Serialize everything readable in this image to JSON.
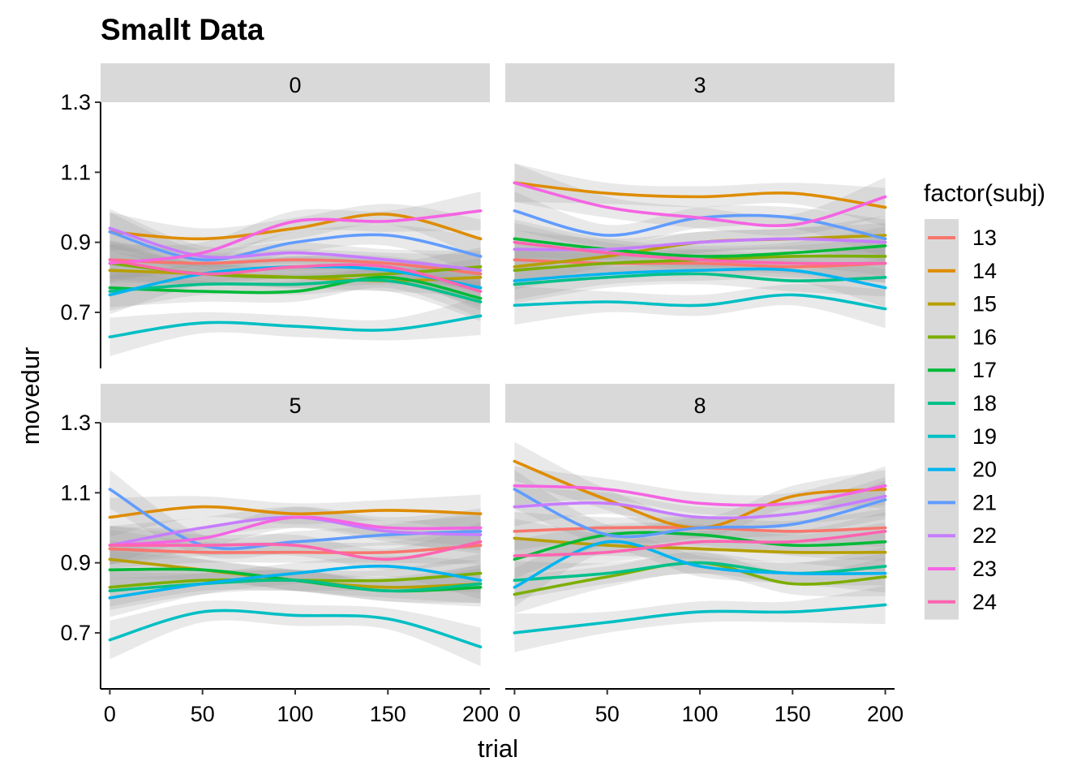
{
  "chart_data": {
    "type": "line",
    "title": "Smallt Data",
    "xlabel": "trial",
    "ylabel": "movedur",
    "x_ticks": [
      0,
      50,
      100,
      150,
      200
    ],
    "y_ticks": [
      0.7,
      0.9,
      1.1,
      1.3
    ],
    "y_tick_labels": [
      "0.7",
      "0.9",
      "1.1",
      "1.3"
    ],
    "xlim": [
      -5,
      205
    ],
    "ylim": [
      0.54,
      1.3
    ],
    "legend": {
      "title": "factor(subj)",
      "placement": "right"
    },
    "series_colors": {
      "13": "#F8766D",
      "14": "#DE8C00",
      "15": "#B79F00",
      "16": "#7CAE00",
      "17": "#00BA38",
      "18": "#00C08B",
      "19": "#00BFC4",
      "20": "#00B4F0",
      "21": "#619CFF",
      "22": "#C77CFF",
      "23": "#F564E3",
      "24": "#FF64B0"
    },
    "subjects": [
      "13",
      "14",
      "15",
      "16",
      "17",
      "18",
      "19",
      "20",
      "21",
      "22",
      "23",
      "24"
    ],
    "x": [
      0,
      50,
      100,
      150,
      200
    ],
    "panels": [
      {
        "label": "0",
        "series": [
          {
            "name": "13",
            "values": [
              0.85,
              0.84,
              0.85,
              0.84,
              0.81
            ]
          },
          {
            "name": "14",
            "values": [
              0.93,
              0.91,
              0.94,
              0.98,
              0.91
            ]
          },
          {
            "name": "15",
            "values": [
              0.82,
              0.81,
              0.8,
              0.79,
              0.8
            ]
          },
          {
            "name": "16",
            "values": [
              0.84,
              0.81,
              0.8,
              0.81,
              0.83
            ]
          },
          {
            "name": "17",
            "values": [
              0.77,
              0.76,
              0.76,
              0.8,
              0.74
            ]
          },
          {
            "name": "18",
            "values": [
              0.76,
              0.78,
              0.78,
              0.79,
              0.73
            ]
          },
          {
            "name": "19",
            "values": [
              0.63,
              0.67,
              0.66,
              0.65,
              0.69
            ]
          },
          {
            "name": "20",
            "values": [
              0.75,
              0.81,
              0.83,
              0.82,
              0.77
            ]
          },
          {
            "name": "21",
            "values": [
              0.93,
              0.85,
              0.9,
              0.92,
              0.86
            ]
          },
          {
            "name": "22",
            "values": [
              0.94,
              0.86,
              0.87,
              0.85,
              0.82
            ]
          },
          {
            "name": "23",
            "values": [
              0.84,
              0.87,
              0.96,
              0.96,
              0.99
            ]
          },
          {
            "name": "24",
            "values": [
              0.85,
              0.81,
              0.83,
              0.83,
              0.76
            ]
          }
        ]
      },
      {
        "label": "3",
        "series": [
          {
            "name": "13",
            "values": [
              0.85,
              0.84,
              0.84,
              0.83,
              0.84
            ]
          },
          {
            "name": "14",
            "values": [
              1.07,
              1.04,
              1.03,
              1.04,
              1.0
            ]
          },
          {
            "name": "15",
            "values": [
              0.83,
              0.86,
              0.9,
              0.91,
              0.92
            ]
          },
          {
            "name": "16",
            "values": [
              0.82,
              0.84,
              0.85,
              0.86,
              0.86
            ]
          },
          {
            "name": "17",
            "values": [
              0.91,
              0.88,
              0.86,
              0.87,
              0.89
            ]
          },
          {
            "name": "18",
            "values": [
              0.78,
              0.8,
              0.81,
              0.79,
              0.8
            ]
          },
          {
            "name": "19",
            "values": [
              0.72,
              0.73,
              0.72,
              0.75,
              0.71
            ]
          },
          {
            "name": "20",
            "values": [
              0.79,
              0.81,
              0.82,
              0.82,
              0.77
            ]
          },
          {
            "name": "21",
            "values": [
              0.99,
              0.92,
              0.97,
              0.97,
              0.91
            ]
          },
          {
            "name": "22",
            "values": [
              0.88,
              0.88,
              0.9,
              0.91,
              0.9
            ]
          },
          {
            "name": "23",
            "values": [
              1.07,
              1.0,
              0.97,
              0.95,
              1.03
            ]
          },
          {
            "name": "24",
            "values": [
              0.9,
              0.87,
              0.85,
              0.84,
              0.84
            ]
          }
        ]
      },
      {
        "label": "5",
        "series": [
          {
            "name": "13",
            "values": [
              0.94,
              0.93,
              0.93,
              0.93,
              0.95
            ]
          },
          {
            "name": "14",
            "values": [
              1.03,
              1.06,
              1.04,
              1.05,
              1.04
            ]
          },
          {
            "name": "15",
            "values": [
              0.91,
              0.88,
              0.85,
              0.83,
              0.84
            ]
          },
          {
            "name": "16",
            "values": [
              0.83,
              0.85,
              0.85,
              0.85,
              0.87
            ]
          },
          {
            "name": "17",
            "values": [
              0.88,
              0.88,
              0.85,
              0.82,
              0.83
            ]
          },
          {
            "name": "18",
            "values": [
              0.82,
              0.84,
              0.85,
              0.82,
              0.84
            ]
          },
          {
            "name": "19",
            "values": [
              0.68,
              0.76,
              0.75,
              0.74,
              0.66
            ]
          },
          {
            "name": "20",
            "values": [
              0.8,
              0.84,
              0.87,
              0.89,
              0.85
            ]
          },
          {
            "name": "21",
            "values": [
              1.11,
              0.95,
              0.96,
              0.98,
              0.99
            ]
          },
          {
            "name": "22",
            "values": [
              0.95,
              1.0,
              1.03,
              0.99,
              0.98
            ]
          },
          {
            "name": "23",
            "values": [
              0.95,
              0.97,
              1.03,
              1.0,
              1.0
            ]
          },
          {
            "name": "24",
            "values": [
              0.95,
              0.95,
              0.95,
              0.91,
              0.96
            ]
          }
        ]
      },
      {
        "label": "8",
        "series": [
          {
            "name": "13",
            "values": [
              0.99,
              1.0,
              1.0,
              0.99,
              1.0
            ]
          },
          {
            "name": "14",
            "values": [
              1.19,
              1.08,
              1.0,
              1.09,
              1.11
            ]
          },
          {
            "name": "15",
            "values": [
              0.97,
              0.95,
              0.94,
              0.93,
              0.93
            ]
          },
          {
            "name": "16",
            "values": [
              0.81,
              0.86,
              0.9,
              0.84,
              0.86
            ]
          },
          {
            "name": "17",
            "values": [
              0.91,
              0.98,
              0.98,
              0.95,
              0.96
            ]
          },
          {
            "name": "18",
            "values": [
              0.85,
              0.87,
              0.9,
              0.87,
              0.89
            ]
          },
          {
            "name": "19",
            "values": [
              0.7,
              0.73,
              0.76,
              0.76,
              0.78
            ]
          },
          {
            "name": "20",
            "values": [
              0.83,
              0.96,
              0.89,
              0.87,
              0.87
            ]
          },
          {
            "name": "21",
            "values": [
              1.11,
              0.98,
              1.0,
              1.01,
              1.08
            ]
          },
          {
            "name": "22",
            "values": [
              1.06,
              1.07,
              1.03,
              1.04,
              1.09
            ]
          },
          {
            "name": "23",
            "values": [
              1.12,
              1.11,
              1.07,
              1.07,
              1.12
            ]
          },
          {
            "name": "24",
            "values": [
              0.92,
              0.93,
              0.96,
              0.96,
              0.99
            ]
          }
        ]
      }
    ]
  }
}
